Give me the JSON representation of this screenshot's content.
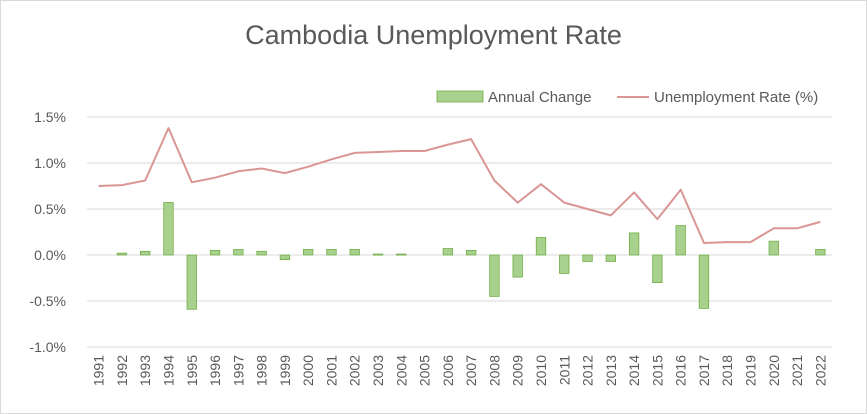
{
  "chart_data": {
    "type": "bar+line",
    "title": "Cambodia Unemployment Rate",
    "categories": [
      "1991",
      "1992",
      "1993",
      "1994",
      "1995",
      "1996",
      "1997",
      "1998",
      "1999",
      "2000",
      "2001",
      "2002",
      "2003",
      "2004",
      "2005",
      "2006",
      "2007",
      "2008",
      "2009",
      "2010",
      "2011",
      "2012",
      "2013",
      "2014",
      "2015",
      "2016",
      "2017",
      "2018",
      "2019",
      "2020",
      "2021",
      "2022"
    ],
    "series": [
      {
        "name": "Annual Change",
        "type": "bar",
        "color": "#a9d18e",
        "border_color": "#70ad47",
        "values": [
          null,
          0.02,
          0.04,
          0.57,
          -0.59,
          0.05,
          0.06,
          0.04,
          -0.05,
          0.06,
          0.06,
          0.06,
          0.01,
          0.01,
          null,
          0.07,
          0.05,
          -0.45,
          -0.24,
          0.19,
          -0.2,
          -0.07,
          -0.07,
          0.24,
          -0.3,
          0.32,
          -0.58,
          null,
          null,
          0.15,
          null,
          0.06
        ]
      },
      {
        "name": "Unemployment Rate (%)",
        "type": "line",
        "color": "#d99694",
        "values": [
          0.75,
          0.76,
          0.81,
          1.38,
          0.79,
          0.84,
          0.91,
          0.94,
          0.89,
          0.96,
          1.04,
          1.11,
          1.12,
          1.13,
          1.13,
          1.2,
          1.26,
          0.81,
          0.57,
          0.77,
          0.57,
          0.5,
          0.43,
          0.68,
          0.39,
          0.71,
          0.13,
          0.14,
          0.14,
          0.29,
          0.29,
          0.36
        ]
      }
    ],
    "y_ticks": [
      "1.5%",
      "1.0%",
      "0.5%",
      "0.0%",
      "-0.5%",
      "-1.0%"
    ],
    "ylim": [
      -1.0,
      1.5
    ],
    "grid": true,
    "legend_position": "top-right"
  }
}
